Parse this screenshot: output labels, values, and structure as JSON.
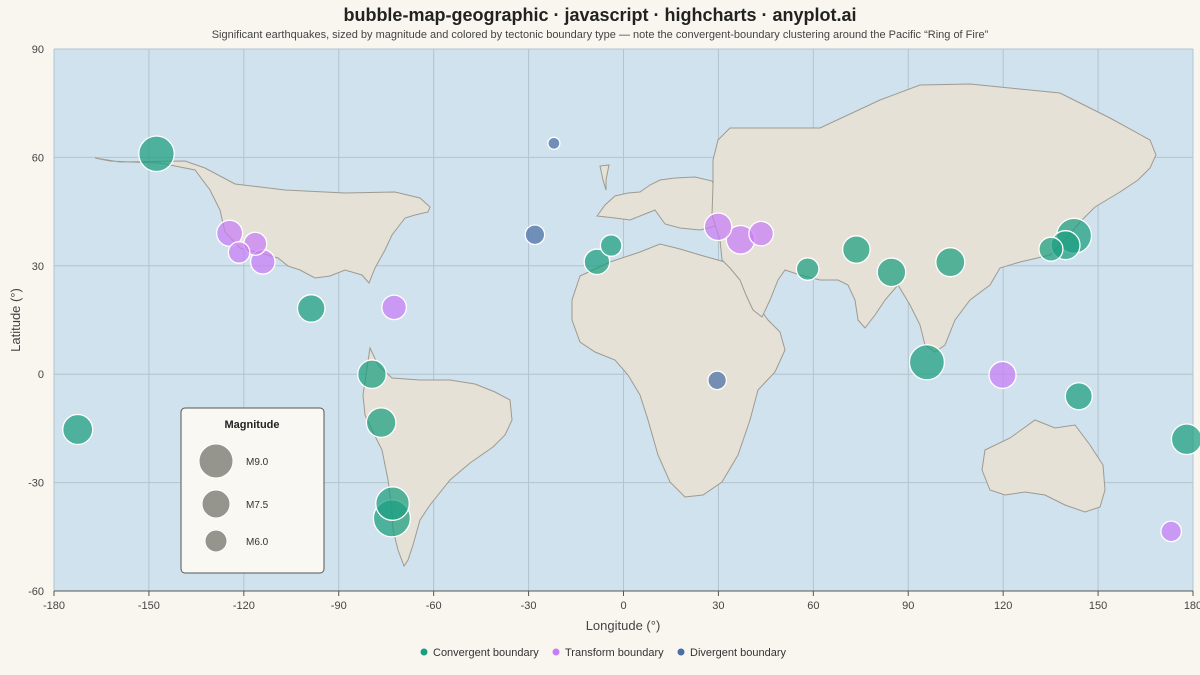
{
  "chart_data": {
    "type": "scatter",
    "subtype": "bubble-map",
    "title": "bubble-map-geographic · javascript · highcharts · anyplot.ai",
    "subtitle": "Significant earthquakes, sized by magnitude and colored by tectonic boundary type — note the convergent-boundary clustering around the Pacific “Ring of Fire”",
    "xlabel": "Longitude (°)",
    "ylabel": "Latitude (°)",
    "xlim": [
      -180,
      180
    ],
    "ylim": [
      -60,
      90
    ],
    "x_ticks": [
      -180,
      -150,
      -120,
      -90,
      -60,
      -30,
      0,
      30,
      60,
      90,
      120,
      150,
      180
    ],
    "y_ticks": [
      -60,
      -30,
      0,
      30,
      60,
      90
    ],
    "x_tick_labels": [
      "-180",
      "-150",
      "-120",
      "-90",
      "-60",
      "-30",
      "0",
      "30",
      "60",
      "90",
      "120",
      "150",
      "180"
    ],
    "y_tick_labels": [
      "-60",
      "-30",
      "0",
      "30",
      "60",
      "90"
    ],
    "grid": true,
    "legend_position": "bottom-center",
    "series": [
      {
        "name": "Convergent boundary",
        "color": "#1a9e80",
        "points": [
          {
            "lon": -147.6,
            "lat": 61.0,
            "mag": 9.2
          },
          {
            "lon": -172.5,
            "lat": -15.3,
            "mag": 8.1
          },
          {
            "lon": -98.7,
            "lat": 18.2,
            "mag": 7.6
          },
          {
            "lon": -79.5,
            "lat": 0.0,
            "mag": 7.8
          },
          {
            "lon": -76.6,
            "lat": -13.4,
            "mag": 8.0
          },
          {
            "lon": -73.0,
            "lat": -35.8,
            "mag": 8.8
          },
          {
            "lon": -73.2,
            "lat": -39.9,
            "mag": 9.5
          },
          {
            "lon": -8.4,
            "lat": 31.1,
            "mag": 7.2
          },
          {
            "lon": -3.9,
            "lat": 35.6,
            "mag": 6.4
          },
          {
            "lon": 58.2,
            "lat": 29.1,
            "mag": 6.6
          },
          {
            "lon": 73.6,
            "lat": 34.5,
            "mag": 7.6
          },
          {
            "lon": 84.7,
            "lat": 28.2,
            "mag": 7.8
          },
          {
            "lon": 95.9,
            "lat": 3.3,
            "mag": 9.1
          },
          {
            "lon": 103.3,
            "lat": 31.0,
            "mag": 7.9
          },
          {
            "lon": 135.1,
            "lat": 34.6,
            "mag": 6.9
          },
          {
            "lon": 139.7,
            "lat": 35.7,
            "mag": 7.9
          },
          {
            "lon": 142.4,
            "lat": 38.3,
            "mag": 9.1
          },
          {
            "lon": 143.9,
            "lat": -6.1,
            "mag": 7.5
          },
          {
            "lon": 178.0,
            "lat": -18.0,
            "mag": 8.2
          }
        ]
      },
      {
        "name": "Transform boundary",
        "color": "#c77df5",
        "points": [
          {
            "lon": -124.5,
            "lat": 39.0,
            "mag": 7.3
          },
          {
            "lon": -116.4,
            "lat": 36.1,
            "mag": 6.7
          },
          {
            "lon": -121.5,
            "lat": 33.7,
            "mag": 6.4
          },
          {
            "lon": -114.0,
            "lat": 31.1,
            "mag": 7.0
          },
          {
            "lon": -72.5,
            "lat": 18.5,
            "mag": 7.0
          },
          {
            "lon": 29.9,
            "lat": 40.8,
            "mag": 7.6
          },
          {
            "lon": 37.0,
            "lat": 37.2,
            "mag": 7.8
          },
          {
            "lon": 43.5,
            "lat": 38.9,
            "mag": 7.0
          },
          {
            "lon": 119.8,
            "lat": -0.2,
            "mag": 7.5
          },
          {
            "lon": 173.1,
            "lat": -43.5,
            "mag": 6.2
          }
        ]
      },
      {
        "name": "Divergent boundary",
        "color": "#4a6fa5",
        "points": [
          {
            "lon": -22.0,
            "lat": 63.9,
            "mag": 4.5
          },
          {
            "lon": -28.0,
            "lat": 38.6,
            "mag": 6.0
          },
          {
            "lon": 29.6,
            "lat": -1.7,
            "mag": 5.8
          }
        ]
      }
    ],
    "size_legend": {
      "title": "Magnitude",
      "entries": [
        {
          "label": "M9.0",
          "value": 9.0
        },
        {
          "label": "M7.5",
          "value": 7.5
        },
        {
          "label": "M6.0",
          "value": 6.0
        }
      ]
    }
  }
}
